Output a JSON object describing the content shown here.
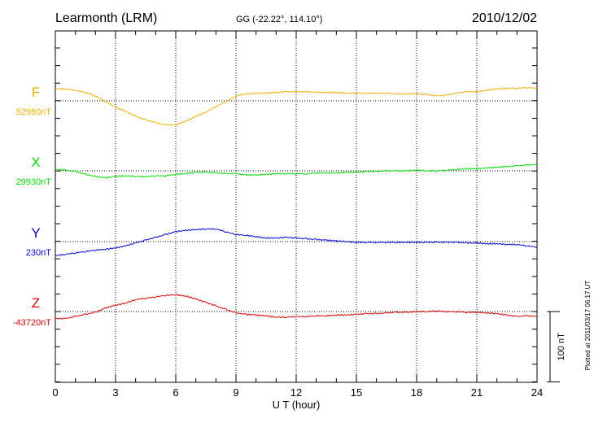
{
  "header": {
    "station": "Learmonth (LRM)",
    "coords": "GG (-22.22°, 114.10°)",
    "date": "2010/12/02"
  },
  "side_note": "Plotted at 2011/03/17 06:17 UT",
  "scale_bar": {
    "label": "100 nT",
    "value_nt": 100
  },
  "chart_data": {
    "type": "line",
    "xlabel": "U T (hour)",
    "xlim": [
      0,
      24
    ],
    "xticks": [
      "0",
      "3",
      "6",
      "9",
      "12",
      "15",
      "18",
      "21",
      "24"
    ],
    "grid": true,
    "series": [
      {
        "name": "F",
        "baseline_label": "52980nT",
        "baseline": 52980,
        "color": "#f0b000",
        "x": [
          0,
          0.5,
          1,
          1.5,
          2,
          2.5,
          3,
          3.5,
          4,
          4.5,
          5,
          5.5,
          6,
          6.5,
          7,
          7.5,
          8,
          8.5,
          9,
          9.5,
          10,
          10.5,
          11,
          11.5,
          12,
          12.5,
          13,
          13.5,
          14,
          14.5,
          15,
          15.5,
          16,
          16.5,
          17,
          17.5,
          18,
          18.5,
          19,
          19.5,
          20,
          20.5,
          21,
          21.5,
          22,
          22.5,
          23,
          23.5,
          24
        ],
        "values": [
          52997,
          52997,
          52995,
          52992,
          52987,
          52979,
          52971,
          52965,
          52958,
          52953,
          52949,
          52946,
          52946,
          52951,
          52958,
          52964,
          52972,
          52979,
          52987,
          52990,
          52991,
          52991,
          52992,
          52993,
          52993,
          52993,
          52992,
          52992,
          52992,
          52991,
          52991,
          52991,
          52991,
          52991,
          52990,
          52990,
          52990,
          52989,
          52987,
          52988,
          52991,
          52993,
          52993,
          52995,
          52997,
          52998,
          52998,
          52999,
          52998
        ]
      },
      {
        "name": "X",
        "baseline_label": "29930nT",
        "baseline": 29930,
        "color": "#00dd00",
        "x": [
          0,
          0.5,
          1,
          1.5,
          2,
          2.5,
          3,
          3.5,
          4,
          4.5,
          5,
          5.5,
          6,
          6.5,
          7,
          7.5,
          8,
          8.5,
          9,
          9.5,
          10,
          10.5,
          11,
          11.5,
          12,
          12.5,
          13,
          13.5,
          14,
          14.5,
          15,
          15.5,
          16,
          16.5,
          17,
          17.5,
          18,
          18.5,
          19,
          19.5,
          20,
          20.5,
          21,
          21.5,
          22,
          22.5,
          23,
          23.5,
          24
        ],
        "values": [
          29932,
          29931,
          29929,
          29925,
          29922,
          29920,
          29922,
          29923,
          29922,
          29922,
          29923,
          29923,
          29925,
          29926,
          29928,
          29928,
          29927,
          29926,
          29926,
          29924,
          29924,
          29925,
          29926,
          29926,
          29926,
          29926,
          29927,
          29927,
          29927,
          29928,
          29928,
          29929,
          29929,
          29930,
          29930,
          29930,
          29931,
          29930,
          29930,
          29931,
          29932,
          29933,
          29933,
          29934,
          29935,
          29936,
          29937,
          29938,
          29939
        ]
      },
      {
        "name": "Y",
        "baseline_label": "230nT",
        "baseline": 230,
        "color": "#0000dd",
        "x": [
          0,
          0.5,
          1,
          1.5,
          2,
          2.5,
          3,
          3.5,
          4,
          4.5,
          5,
          5.5,
          6,
          6.5,
          7,
          7.5,
          8,
          8.5,
          9,
          9.5,
          10,
          10.5,
          11,
          11.5,
          12,
          12.5,
          13,
          13.5,
          14,
          14.5,
          15,
          15.5,
          16,
          16.5,
          17,
          17.5,
          18,
          18.5,
          19,
          19.5,
          20,
          20.5,
          21,
          21.5,
          22,
          22.5,
          23,
          23.5,
          24
        ],
        "values": [
          210,
          212,
          214,
          216,
          218,
          219,
          221,
          224,
          228,
          232,
          236,
          240,
          244,
          246,
          247,
          248,
          248,
          244,
          240,
          239,
          237,
          235,
          235,
          236,
          235,
          234,
          233,
          232,
          231,
          230,
          229,
          229,
          229,
          229,
          229,
          229,
          229,
          229,
          229,
          229,
          229,
          228,
          228,
          227,
          227,
          226,
          226,
          224,
          222
        ]
      },
      {
        "name": "Z",
        "baseline_label": "-43720nT",
        "baseline": -43720,
        "color": "#dd0000",
        "x": [
          0,
          0.5,
          1,
          1.5,
          2,
          2.5,
          3,
          3.5,
          4,
          4.5,
          5,
          5.5,
          6,
          6.5,
          7,
          7.5,
          8,
          8.5,
          9,
          9.5,
          10,
          10.5,
          11,
          11.5,
          12,
          12.5,
          13,
          13.5,
          14,
          14.5,
          15,
          15.5,
          16,
          16.5,
          17,
          17.5,
          18,
          18.5,
          19,
          19.5,
          20,
          20.5,
          21,
          21.5,
          22,
          22.5,
          23,
          23.5,
          24
        ],
        "values": [
          -43730,
          -43730,
          -43727,
          -43724,
          -43721,
          -43715,
          -43711,
          -43708,
          -43703,
          -43701,
          -43699,
          -43697,
          -43696,
          -43698,
          -43702,
          -43707,
          -43712,
          -43717,
          -43722,
          -43724,
          -43725,
          -43726,
          -43728,
          -43728,
          -43727,
          -43727,
          -43726,
          -43726,
          -43725,
          -43725,
          -43724,
          -43723,
          -43723,
          -43722,
          -43721,
          -43721,
          -43720,
          -43720,
          -43719,
          -43720,
          -43720,
          -43721,
          -43721,
          -43722,
          -43723,
          -43725,
          -43727,
          -43726,
          -43727
        ]
      }
    ]
  }
}
